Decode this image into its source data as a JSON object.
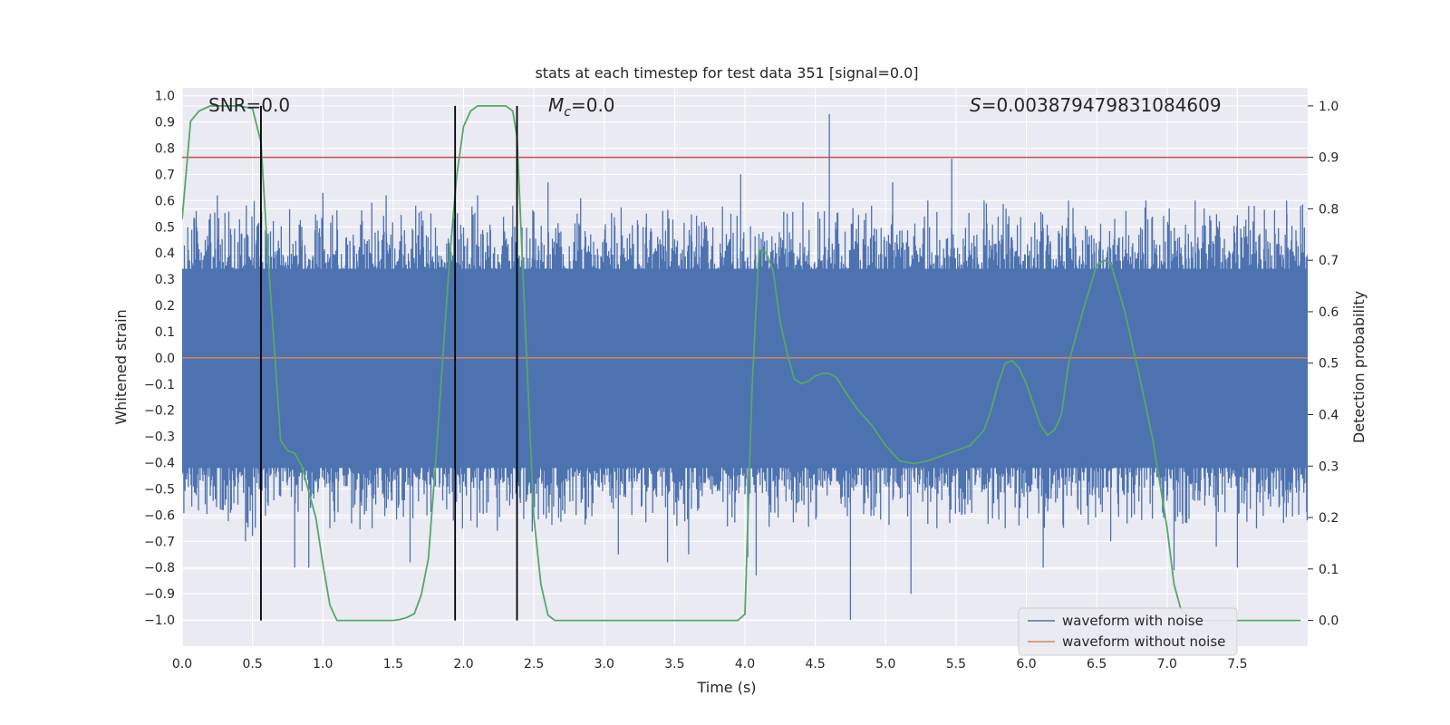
{
  "chart_data": {
    "type": "line",
    "title": "stats at each timestep for test data 351 [signal=0.0]",
    "xlabel": "Time (s)",
    "ylabel": "Whitened strain",
    "y2label": "Detection probability",
    "xlim": [
      0.0,
      8.0
    ],
    "ylim": [
      -1.1,
      1.03
    ],
    "y2lim": [
      -0.05,
      1.035
    ],
    "xticks": [
      "0.0",
      "0.5",
      "1.0",
      "1.5",
      "2.0",
      "2.5",
      "3.0",
      "3.5",
      "4.0",
      "4.5",
      "5.0",
      "5.5",
      "6.0",
      "6.5",
      "7.0",
      "7.5"
    ],
    "yticks": [
      "1.0",
      "0.9",
      "0.8",
      "0.7",
      "0.6",
      "0.5",
      "0.4",
      "0.3",
      "0.2",
      "0.1",
      "0.0",
      "−0.1",
      "−0.2",
      "−0.3",
      "−0.4",
      "−0.5",
      "−0.6",
      "−0.7",
      "−0.8",
      "−0.9",
      "−1.0"
    ],
    "y2ticks": [
      "0.0",
      "0.1",
      "0.2",
      "0.3",
      "0.4",
      "0.5",
      "0.6",
      "0.7",
      "0.8",
      "0.9",
      "1.0"
    ],
    "annotations": {
      "snr": "SNR=0.0",
      "mc_symbol": "M",
      "mc_sub": "c",
      "mc_value": "=0.0",
      "s_symbol": "S",
      "s_value": "=0.003879479831084609"
    },
    "threshold": 0.9,
    "vertical_markers": [
      0.56,
      1.94,
      2.38
    ],
    "noise_envelope": {
      "core_band": [
        -0.42,
        0.34
      ],
      "spikes": [
        {
          "t": 0.1,
          "v": 0.56
        },
        {
          "t": 0.2,
          "v": 0.55
        },
        {
          "t": 0.25,
          "v": 0.62
        },
        {
          "t": 0.35,
          "v": -0.58
        },
        {
          "t": 0.45,
          "v": -0.7
        },
        {
          "t": 0.5,
          "v": -0.68
        },
        {
          "t": 0.8,
          "v": -0.8
        },
        {
          "t": 0.85,
          "v": 0.5
        },
        {
          "t": 0.9,
          "v": -0.8
        },
        {
          "t": 1.0,
          "v": 0.63
        },
        {
          "t": 1.05,
          "v": -0.65
        },
        {
          "t": 1.35,
          "v": -0.65
        },
        {
          "t": 1.45,
          "v": 0.62
        },
        {
          "t": 1.62,
          "v": -0.78
        },
        {
          "t": 1.7,
          "v": 0.56
        },
        {
          "t": 1.95,
          "v": -0.55
        },
        {
          "t": 2.1,
          "v": 0.62
        },
        {
          "t": 2.35,
          "v": 0.58
        },
        {
          "t": 2.5,
          "v": 0.55
        },
        {
          "t": 2.6,
          "v": 0.67
        },
        {
          "t": 2.8,
          "v": -0.6
        },
        {
          "t": 3.1,
          "v": -0.75
        },
        {
          "t": 3.3,
          "v": 0.55
        },
        {
          "t": 3.45,
          "v": -0.78
        },
        {
          "t": 3.6,
          "v": -0.75
        },
        {
          "t": 3.9,
          "v": 0.55
        },
        {
          "t": 3.97,
          "v": 0.7
        },
        {
          "t": 4.02,
          "v": -0.76
        },
        {
          "t": 4.08,
          "v": -0.83
        },
        {
          "t": 4.3,
          "v": 0.55
        },
        {
          "t": 4.6,
          "v": 0.93
        },
        {
          "t": 4.75,
          "v": -1.0
        },
        {
          "t": 4.9,
          "v": 0.58
        },
        {
          "t": 5.05,
          "v": 0.67
        },
        {
          "t": 5.18,
          "v": -0.9
        },
        {
          "t": 5.3,
          "v": 0.6
        },
        {
          "t": 5.47,
          "v": 0.76
        },
        {
          "t": 5.7,
          "v": 0.6
        },
        {
          "t": 5.85,
          "v": -0.65
        },
        {
          "t": 6.12,
          "v": -0.8
        },
        {
          "t": 6.3,
          "v": 0.6
        },
        {
          "t": 6.6,
          "v": -0.7
        },
        {
          "t": 6.85,
          "v": 0.6
        },
        {
          "t": 7.05,
          "v": -0.81
        },
        {
          "t": 7.2,
          "v": 0.6
        },
        {
          "t": 7.35,
          "v": -0.72
        },
        {
          "t": 7.5,
          "v": -0.8
        },
        {
          "t": 7.62,
          "v": 0.58
        },
        {
          "t": 7.85,
          "v": 0.6
        },
        {
          "t": 7.95,
          "v": 0.58
        }
      ]
    },
    "detection_probability": {
      "t": [
        0.0,
        0.06,
        0.12,
        0.2,
        0.3,
        0.4,
        0.5,
        0.56,
        0.6,
        0.65,
        0.7,
        0.75,
        0.8,
        0.85,
        0.9,
        0.95,
        1.0,
        1.05,
        1.1,
        1.15,
        1.2,
        1.3,
        1.4,
        1.5,
        1.55,
        1.6,
        1.65,
        1.7,
        1.75,
        1.8,
        1.85,
        1.9,
        1.95,
        2.0,
        2.05,
        2.1,
        2.15,
        2.2,
        2.25,
        2.3,
        2.35,
        2.38,
        2.45,
        2.5,
        2.55,
        2.6,
        2.65,
        2.7,
        2.8,
        3.0,
        3.5,
        3.9,
        3.95,
        4.0,
        4.05,
        4.1,
        4.15,
        4.2,
        4.25,
        4.3,
        4.35,
        4.4,
        4.45,
        4.5,
        4.55,
        4.6,
        4.65,
        4.7,
        4.75,
        4.8,
        4.9,
        5.0,
        5.1,
        5.2,
        5.3,
        5.4,
        5.5,
        5.6,
        5.7,
        5.75,
        5.8,
        5.85,
        5.9,
        5.95,
        6.0,
        6.05,
        6.1,
        6.15,
        6.2,
        6.25,
        6.3,
        6.4,
        6.5,
        6.55,
        6.6,
        6.7,
        6.8,
        6.9,
        7.0,
        7.05,
        7.1,
        7.2,
        7.3,
        7.5,
        7.8,
        7.95
      ],
      "p": [
        0.78,
        0.97,
        0.99,
        1.0,
        1.0,
        1.0,
        0.995,
        0.93,
        0.75,
        0.55,
        0.35,
        0.33,
        0.325,
        0.3,
        0.25,
        0.2,
        0.11,
        0.03,
        0.0,
        0.0,
        0.0,
        0.0,
        0.0,
        0.0,
        0.002,
        0.006,
        0.013,
        0.05,
        0.12,
        0.3,
        0.5,
        0.7,
        0.86,
        0.96,
        0.99,
        1.0,
        1.0,
        1.0,
        1.0,
        1.0,
        0.99,
        0.94,
        0.5,
        0.2,
        0.07,
        0.01,
        0.0,
        0.0,
        0.0,
        0.0,
        0.0,
        0.0,
        0.0,
        0.012,
        0.45,
        0.72,
        0.715,
        0.68,
        0.58,
        0.52,
        0.47,
        0.46,
        0.465,
        0.475,
        0.48,
        0.48,
        0.472,
        0.45,
        0.43,
        0.41,
        0.38,
        0.34,
        0.31,
        0.305,
        0.31,
        0.32,
        0.33,
        0.34,
        0.37,
        0.41,
        0.46,
        0.5,
        0.505,
        0.49,
        0.46,
        0.42,
        0.38,
        0.36,
        0.37,
        0.4,
        0.5,
        0.6,
        0.69,
        0.7,
        0.695,
        0.6,
        0.48,
        0.35,
        0.18,
        0.07,
        0.02,
        0.0,
        0.0,
        0.0,
        0.0,
        0.0
      ]
    },
    "legend": {
      "position": "lower-right",
      "entries": [
        {
          "label": "waveform with noise",
          "color": "#4c72b0"
        },
        {
          "label": "waveform without noise",
          "color": "#dd8452"
        }
      ]
    },
    "colors": {
      "noise": "#4c72b0",
      "clean": "#dd8452",
      "probability": "#55a868",
      "threshold": "#c44e52",
      "marker": "#000000",
      "axes_bg": "#eaeaf2",
      "grid": "#ffffff"
    }
  }
}
